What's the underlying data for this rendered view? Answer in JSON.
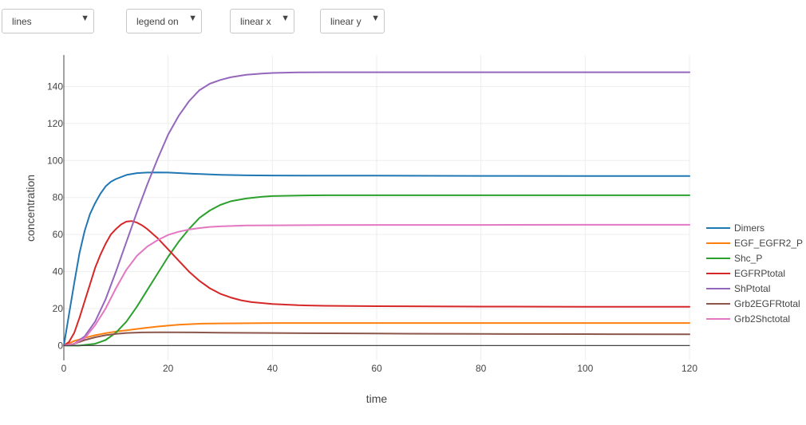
{
  "controls": {
    "mode_select": {
      "value": "lines"
    },
    "legend_select": {
      "value": "legend on"
    },
    "xscale_select": {
      "value": "linear x"
    },
    "yscale_select": {
      "value": "linear y"
    },
    "caret_icon": "triangle-down-icon"
  },
  "chart_data": {
    "type": "line",
    "xlabel": "time",
    "ylabel": "concentration",
    "xlim": [
      0,
      120
    ],
    "ylim": [
      -8,
      157
    ],
    "xticks": [
      0,
      20,
      40,
      60,
      80,
      100,
      120
    ],
    "yticks": [
      0,
      20,
      40,
      60,
      80,
      100,
      120,
      140
    ],
    "grid": true,
    "legend_position": "right",
    "series": [
      {
        "name": "Dimers",
        "color": "#1f77b4",
        "x": [
          0,
          1,
          2,
          3,
          4,
          5,
          6,
          7,
          8,
          9,
          10,
          12,
          14,
          16,
          18,
          20,
          25,
          30,
          35,
          40,
          50,
          60,
          80,
          100,
          120
        ],
        "y": [
          0,
          17,
          34,
          50,
          62,
          71,
          77,
          82,
          86,
          88.5,
          90,
          92.2,
          93.2,
          93.5,
          93.6,
          93.5,
          92.8,
          92.3,
          92.0,
          91.9,
          91.8,
          91.8,
          91.7,
          91.6,
          91.6
        ]
      },
      {
        "name": "EGF_EGFR2_P",
        "color": "#ff7f0e",
        "x": [
          0,
          2,
          4,
          6,
          8,
          10,
          12,
          15,
          18,
          22,
          26,
          30,
          40,
          60,
          80,
          100,
          120
        ],
        "y": [
          0,
          2.5,
          4.2,
          5.6,
          6.7,
          7.6,
          8.3,
          9.3,
          10.3,
          11.3,
          11.8,
          12.0,
          12.2,
          12.2,
          12.2,
          12.2,
          12.2
        ]
      },
      {
        "name": "Shc_P",
        "color": "#2ca02c",
        "x": [
          0,
          3,
          6,
          8,
          10,
          12,
          14,
          16,
          18,
          20,
          22,
          24,
          26,
          28,
          30,
          32,
          35,
          38,
          40,
          45,
          50,
          60,
          80,
          100,
          120
        ],
        "y": [
          0,
          0,
          1,
          3,
          7,
          13,
          21,
          30,
          39,
          48,
          56,
          63,
          69,
          73,
          76,
          78,
          79.5,
          80.4,
          80.8,
          81.1,
          81.2,
          81.2,
          81.2,
          81.2,
          81.2
        ]
      },
      {
        "name": "EGFRPtotal",
        "color": "#d62728",
        "x": [
          0,
          1,
          2,
          3,
          4,
          5,
          6,
          7,
          8,
          9,
          10,
          11,
          12,
          13,
          14,
          15,
          16,
          18,
          20,
          22,
          24,
          26,
          28,
          30,
          32,
          34,
          36,
          40,
          45,
          50,
          60,
          80,
          100,
          120
        ],
        "y": [
          0,
          2,
          7,
          15,
          24,
          33,
          42,
          49,
          55,
          60,
          63,
          65.5,
          67,
          67.3,
          66.5,
          65,
          63,
          58,
          52,
          46,
          40,
          35,
          31,
          28,
          26,
          24.5,
          23.5,
          22.5,
          21.8,
          21.5,
          21.3,
          21.1,
          21.0,
          21.0
        ]
      },
      {
        "name": "ShPtotal",
        "color": "#9467bd",
        "x": [
          0,
          2,
          4,
          6,
          8,
          10,
          12,
          14,
          16,
          18,
          20,
          22,
          24,
          26,
          28,
          30,
          32,
          35,
          38,
          40,
          45,
          50,
          60,
          80,
          100,
          120
        ],
        "y": [
          0,
          1,
          5,
          13,
          25,
          40,
          56,
          72,
          87,
          101,
          114,
          124,
          132,
          138,
          141.5,
          143.5,
          145,
          146.3,
          147,
          147.3,
          147.6,
          147.7,
          147.7,
          147.7,
          147.7,
          147.7
        ]
      },
      {
        "name": "Grb2EGFRtotal",
        "color": "#8c564b",
        "x": [
          0,
          2,
          4,
          6,
          8,
          10,
          12,
          15,
          18,
          20,
          25,
          30,
          40,
          60,
          80,
          100,
          120
        ],
        "y": [
          0,
          1,
          3,
          4.5,
          5.6,
          6.3,
          6.8,
          7.1,
          7.2,
          7.2,
          7.1,
          7.0,
          6.8,
          6.5,
          6.3,
          6.2,
          6.1
        ]
      },
      {
        "name": "Grb2Shctotal",
        "color": "#e377c2",
        "x": [
          0,
          2,
          4,
          6,
          8,
          10,
          12,
          14,
          16,
          18,
          20,
          22,
          24,
          26,
          28,
          30,
          35,
          40,
          50,
          60,
          80,
          100,
          120
        ],
        "y": [
          0,
          1,
          4,
          11,
          20,
          31,
          41,
          48.5,
          53.5,
          57,
          59.8,
          61.5,
          62.7,
          63.5,
          64.1,
          64.4,
          64.9,
          65.0,
          65.1,
          65.2,
          65.2,
          65.3,
          65.3
        ]
      },
      {
        "name": "",
        "color": "#444444",
        "x": [
          0,
          120
        ],
        "y": [
          0,
          0
        ]
      }
    ]
  }
}
